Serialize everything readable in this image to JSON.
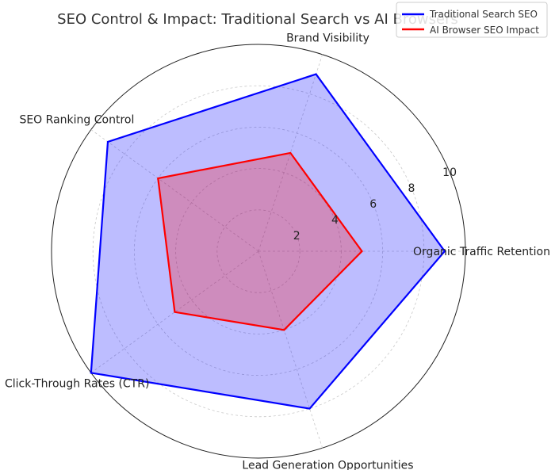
{
  "chart_data": {
    "type": "radar",
    "title": "SEO Control & Impact: Traditional Search vs AI Browsers",
    "categories": [
      "Organic Traffic Retention",
      "Brand Visibility",
      "SEO Ranking Control",
      "Click-Through Rates (CTR)",
      "Lead Generation Opportunities"
    ],
    "rlim": [
      0,
      10
    ],
    "r_ticks": [
      2,
      4,
      6,
      8,
      10
    ],
    "grid": true,
    "legend_position": "top-right",
    "series": [
      {
        "name": "Traditional Search SEO",
        "color": "#0000ff",
        "fill": "#0000ff",
        "fill_opacity": 0.26,
        "values": [
          9,
          9,
          9,
          10,
          8
        ]
      },
      {
        "name": "AI Browser SEO Impact",
        "color": "#ff0000",
        "fill": "#ff0000",
        "fill_opacity": 0.26,
        "values": [
          5,
          5,
          6,
          5,
          4
        ]
      }
    ]
  }
}
